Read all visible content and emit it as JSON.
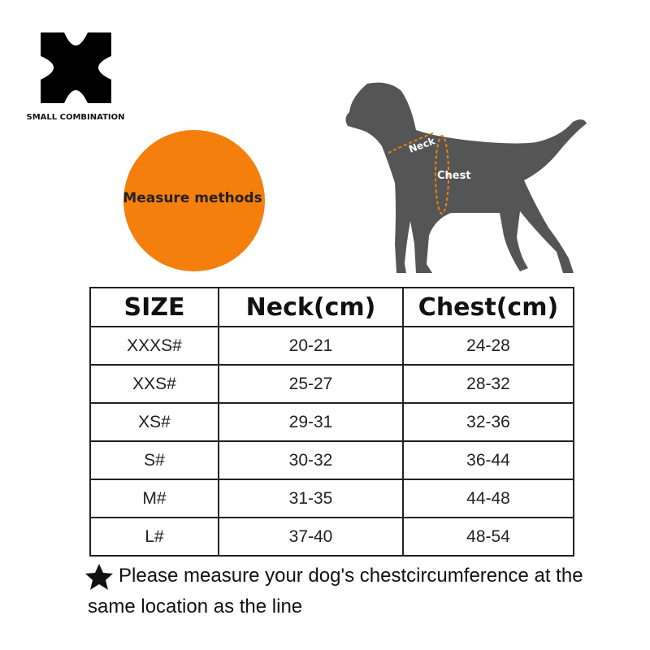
{
  "brand": "SMALL COMBINATION",
  "badge": "Measure methods",
  "diagram": {
    "neck_label": "Neck",
    "chest_label": "Chest"
  },
  "table": {
    "headers": [
      "SIZE",
      "Neck(cm)",
      "Chest(cm)"
    ],
    "rows": [
      [
        "XXXS#",
        "20-21",
        "24-28"
      ],
      [
        "XXS#",
        "25-27",
        "28-32"
      ],
      [
        "XS#",
        "29-31",
        "32-36"
      ],
      [
        "S#",
        "30-32",
        "36-44"
      ],
      [
        "M#",
        "31-35",
        "44-48"
      ],
      [
        "L#",
        "37-40",
        "48-54"
      ]
    ]
  },
  "note": "Please measure your dog's chestcircumference at the same location as the line"
}
